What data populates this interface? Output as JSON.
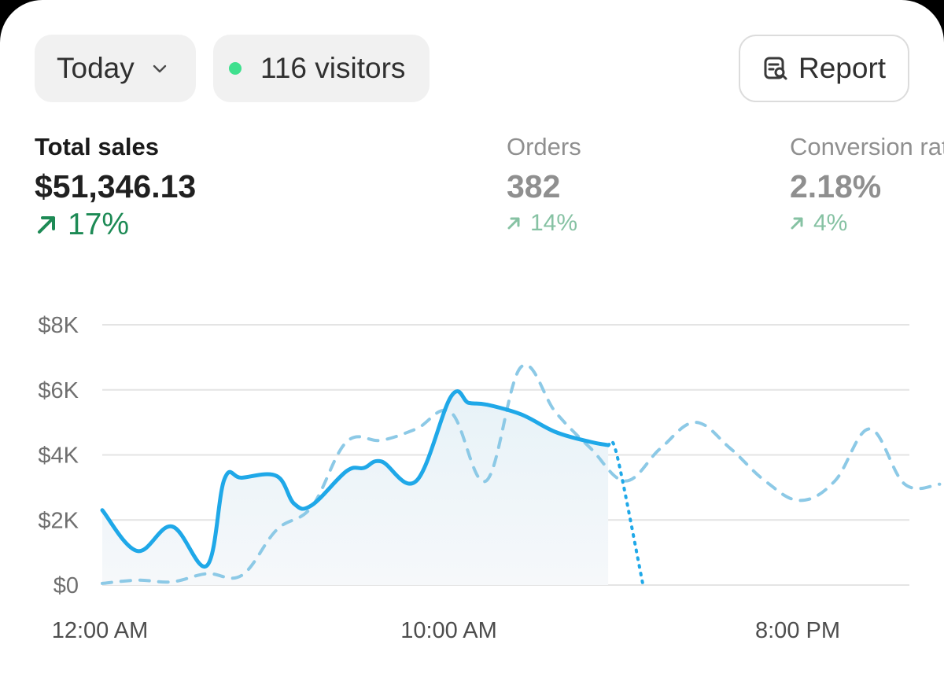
{
  "toolbar": {
    "range_label": "Today",
    "visitors_label": "116 visitors",
    "report_label": "Report"
  },
  "metrics": [
    {
      "label": "Total sales",
      "value": "$51,346.13",
      "change": "17%"
    },
    {
      "label": "Orders",
      "value": "382",
      "change": "14%"
    },
    {
      "label": "Conversion rate",
      "value": "2.18%",
      "change": "4%"
    }
  ],
  "colors": {
    "current_line": "#1fa8e8",
    "comparison_line": "#8cc9e6",
    "positive": "#1d8a55",
    "live_dot": "#3fe08e"
  },
  "chart_data": {
    "type": "line",
    "x_unit": "hour",
    "xlim": [
      0,
      24
    ],
    "ylim": [
      0,
      8000
    ],
    "y_ticks": [
      0,
      2000,
      4000,
      6000,
      8000
    ],
    "y_tick_labels": [
      "$0",
      "$2K",
      "$4K",
      "$6K",
      "$8K"
    ],
    "x_ticks": [
      0,
      10,
      20
    ],
    "x_tick_labels": [
      "12:00 AM",
      "10:00 AM",
      "8:00 PM"
    ],
    "grid": true,
    "series": [
      {
        "style": "solid",
        "x": [
          0,
          1,
          2,
          3,
          3.5,
          4,
          5,
          5.5,
          6,
          7,
          7.5,
          8,
          9,
          10,
          10.5,
          11,
          12,
          13,
          14,
          14.5,
          14.75,
          15.5
        ],
        "y": [
          2300,
          1050,
          1800,
          600,
          3250,
          3300,
          3350,
          2500,
          2450,
          3500,
          3600,
          3800,
          3200,
          5800,
          5600,
          5550,
          5250,
          4700,
          4400,
          4300,
          4000,
          0
        ]
      },
      {
        "style": "dashed",
        "x": [
          0,
          1,
          2,
          3,
          4,
          5,
          6,
          7,
          8,
          9,
          10,
          11,
          12,
          13,
          14,
          15,
          16,
          17,
          18,
          19,
          20,
          21,
          22,
          23,
          24
        ],
        "y": [
          50,
          150,
          100,
          350,
          300,
          1700,
          2400,
          4400,
          4450,
          4800,
          5300,
          3200,
          6700,
          5300,
          4200,
          3200,
          4200,
          5000,
          4200,
          3200,
          2600,
          3200,
          4800,
          3100,
          3100
        ]
      }
    ]
  }
}
